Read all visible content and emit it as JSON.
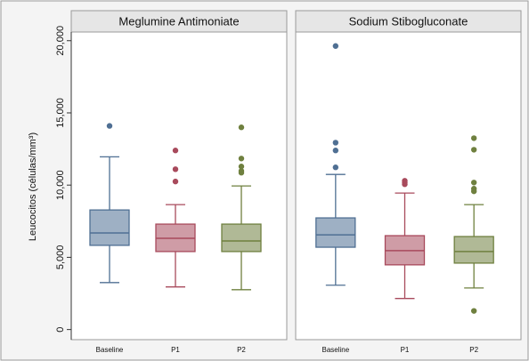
{
  "chart_data": [
    {
      "type": "box",
      "title": "Meglumine Antimoniate",
      "y_label": "Leucocitos (células/mm³)",
      "categories": [
        "Baseline",
        "P1",
        "P2"
      ],
      "colors": [
        "#4f6f93",
        "#a84a5c",
        "#6f803f"
      ],
      "boxes": [
        {
          "whisker_low": 3250,
          "q1": 5830,
          "median": 6690,
          "q3": 8280,
          "whisker_high": 11960,
          "outliers": [
            14100
          ]
        },
        {
          "whisker_low": 2950,
          "q1": 5400,
          "median": 6320,
          "q3": 7300,
          "whisker_high": 8650,
          "outliers": [
            12400,
            11100,
            10250
          ]
        },
        {
          "whisker_low": 2760,
          "q1": 5400,
          "median": 6130,
          "q3": 7300,
          "whisker_high": 9940,
          "outliers": [
            14000,
            11840,
            11290,
            10980,
            10860
          ]
        }
      ],
      "ylim": [
        -700,
        20600
      ],
      "yticks": [
        0,
        {
          "value": 5000,
          "label": "5,000"
        },
        {
          "value": 10000,
          "label": "10,000"
        },
        {
          "value": 15000,
          "label": "15,000"
        },
        {
          "value": 20000,
          "label": "20,000"
        }
      ]
    },
    {
      "type": "box",
      "title": "Sodium Stibogluconate",
      "categories": [
        "Baseline",
        "P1",
        "P2"
      ],
      "colors": [
        "#4f6f93",
        "#a84a5c",
        "#6f803f"
      ],
      "boxes": [
        {
          "whisker_low": 3070,
          "q1": 5700,
          "median": 6560,
          "q3": 7730,
          "whisker_high": 10740,
          "outliers": [
            19630,
            12940,
            12400,
            11230
          ]
        },
        {
          "whisker_low": 2150,
          "q1": 4480,
          "median": 5460,
          "q3": 6500,
          "whisker_high": 9450,
          "outliers": [
            10300,
            10180,
            10060
          ]
        },
        {
          "whisker_low": 2880,
          "q1": 4600,
          "median": 5400,
          "q3": 6440,
          "whisker_high": 8650,
          "outliers": [
            13250,
            12450,
            10180,
            9750,
            9570,
            1290
          ]
        }
      ],
      "ylim": [
        -700,
        20600
      ]
    }
  ]
}
